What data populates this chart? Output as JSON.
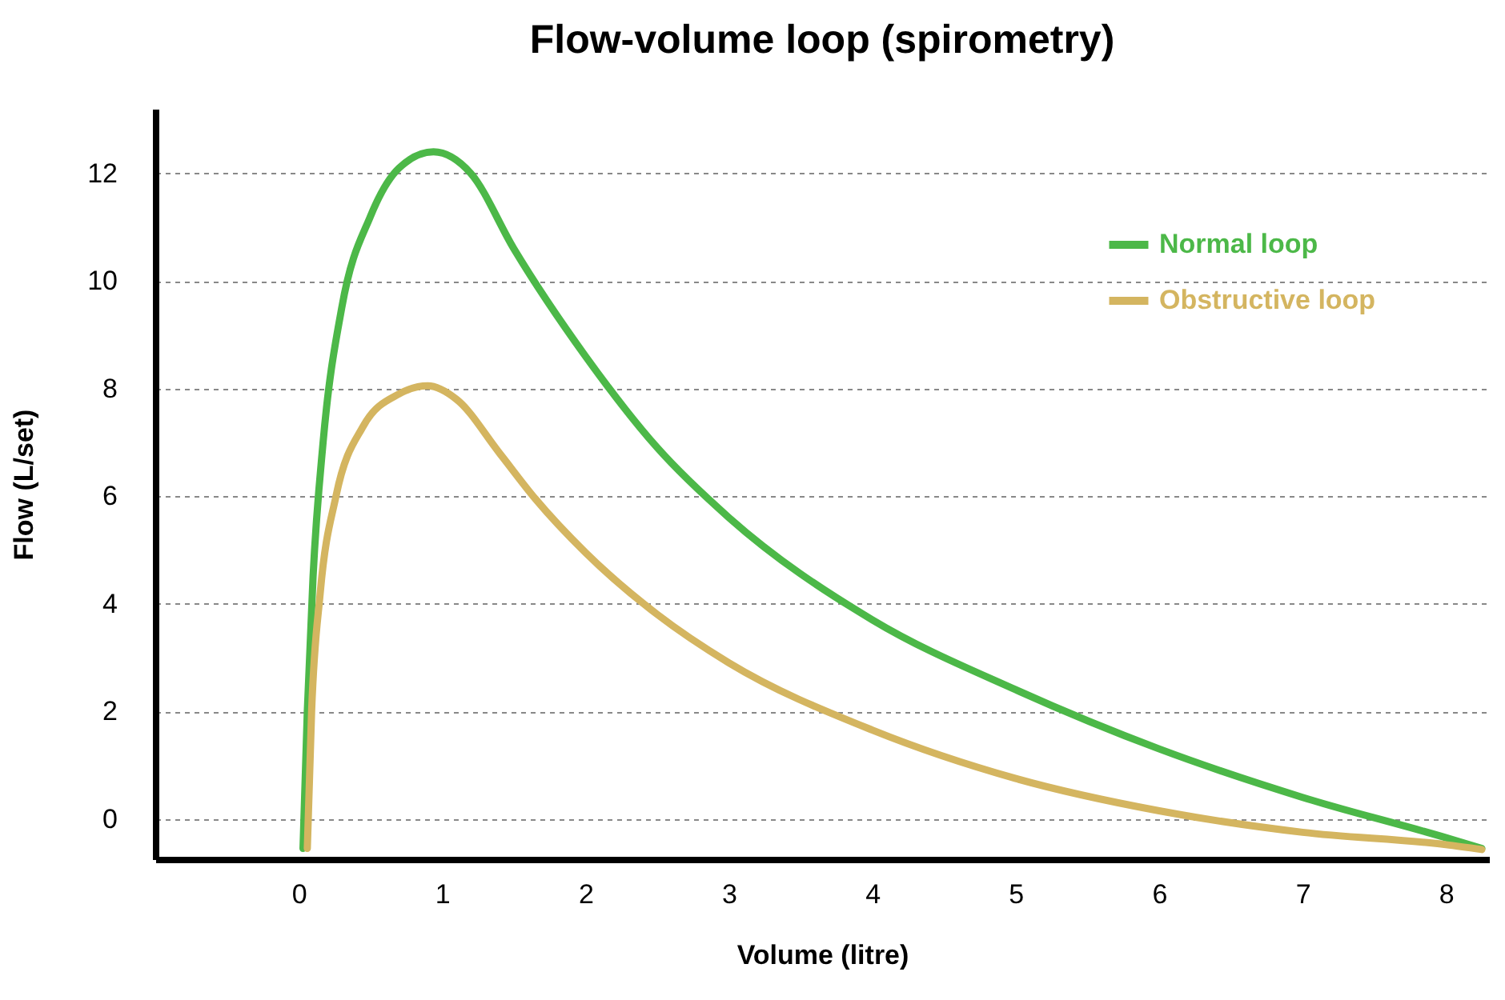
{
  "chart_data": {
    "type": "line",
    "title": "Flow-volume loop (spirometry)",
    "xlabel": "Volume (litre)",
    "ylabel": "Flow (L/set)",
    "xlim": [
      -1,
      8.3
    ],
    "xticks": [
      0,
      1,
      2,
      3,
      4,
      5,
      6,
      7,
      8
    ],
    "ylim": [
      -0.75,
      13.2
    ],
    "yticks": [
      0,
      2,
      4,
      6,
      8,
      10,
      12
    ],
    "grid": "y",
    "legend": "top right",
    "marker": "none",
    "line_style": "solid",
    "series": [
      {
        "name": "Normal loop",
        "color": "#4cb848",
        "x": [
          0.03,
          0.06,
          0.1,
          0.17,
          0.3,
          0.5,
          0.7,
          0.94,
          1.2,
          1.5,
          2,
          2.5,
          3,
          4,
          5,
          6,
          7,
          8,
          8.25
        ],
        "values": [
          -0.55,
          2,
          4.5,
          7,
          9.5,
          11.2,
          12.1,
          12.4,
          12,
          10.6,
          8.6,
          6.9,
          5.6,
          3.7,
          2.4,
          1.3,
          0.4,
          -0.35,
          -0.55
        ]
      },
      {
        "name": "Obstructive loop",
        "color": "#d4b560",
        "x": [
          0.06,
          0.09,
          0.15,
          0.26,
          0.45,
          0.7,
          0.9,
          1.1,
          1.4,
          1.65,
          2,
          2.5,
          3,
          4,
          5,
          6,
          7,
          8,
          8.25
        ],
        "values": [
          -0.55,
          2,
          4.2,
          6,
          7.3,
          7.9,
          8.05,
          7.8,
          6.8,
          5.95,
          4.95,
          3.8,
          2.9,
          1.65,
          0.75,
          0.15,
          -0.25,
          -0.48,
          -0.57
        ]
      }
    ]
  }
}
